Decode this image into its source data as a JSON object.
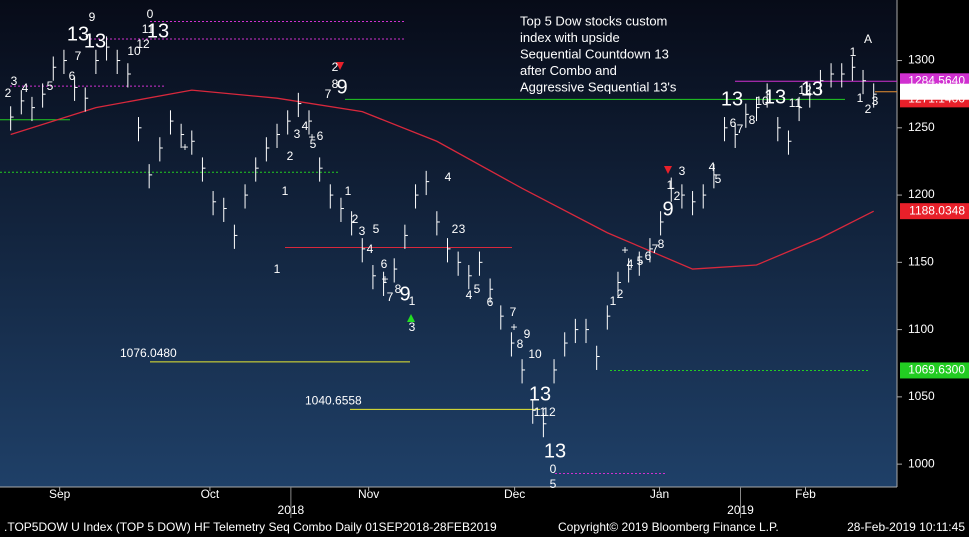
{
  "chart_data": {
    "type": "ohlc",
    "note": [
      "Top 5 Dow stocks custom",
      "index with upside",
      "Sequential Countdown 13",
      "after Combo and",
      "Aggressive Sequential 13's"
    ],
    "xlim": [
      -1,
      83
    ],
    "ylim": [
      983,
      1345
    ],
    "yticks": [
      1000,
      1050,
      1100,
      1150,
      1200,
      1250,
      1300
    ],
    "xticks": [
      {
        "value": 4.6,
        "label": "Sep"
      },
      {
        "value": 18.7,
        "label": "Oct"
      },
      {
        "value": 33.6,
        "label": "Nov"
      },
      {
        "value": 47.3,
        "label": "Dec"
      },
      {
        "value": 60.9,
        "label": "Jan"
      },
      {
        "value": 74.6,
        "label": "Feb"
      }
    ],
    "year_ticks": [
      {
        "value": 26.3,
        "label": "2018"
      },
      {
        "value": 68.5,
        "label": "2019"
      }
    ],
    "bar_color": "#ffffff",
    "high": [
      1266,
      1278,
      1273,
      1283,
      1303,
      1308,
      1288,
      1280,
      1308,
      1318,
      1308,
      1298,
      1258,
      1223,
      1243,
      1263,
      1253,
      1248,
      1228,
      1203,
      1198,
      1178,
      1208,
      1228,
      1243,
      1253,
      1263,
      1276,
      1263,
      1228,
      1208,
      1198,
      1188,
      1168,
      1148,
      1143,
      1153,
      1178,
      1208,
      1218,
      1188,
      1168,
      1158,
      1148,
      1158,
      1138,
      1118,
      1098,
      1078,
      1048,
      1038,
      1078,
      1098,
      1108,
      1108,
      1088,
      1118,
      1143,
      1153,
      1158,
      1168,
      1188,
      1213,
      1208,
      1203,
      1208,
      1223,
      1258,
      1253,
      1268,
      1273,
      1283,
      1258,
      1248,
      1273,
      1283,
      1293,
      1298,
      1298,
      1303,
      1293,
      1283
    ],
    "low": [
      1248,
      1260,
      1255,
      1265,
      1285,
      1290,
      1270,
      1262,
      1290,
      1300,
      1290,
      1280,
      1240,
      1205,
      1225,
      1245,
      1235,
      1230,
      1210,
      1185,
      1180,
      1160,
      1190,
      1210,
      1225,
      1235,
      1245,
      1258,
      1245,
      1210,
      1190,
      1180,
      1170,
      1150,
      1130,
      1125,
      1135,
      1160,
      1190,
      1200,
      1170,
      1150,
      1140,
      1130,
      1140,
      1120,
      1100,
      1080,
      1060,
      1030,
      1020,
      1060,
      1080,
      1090,
      1090,
      1070,
      1100,
      1125,
      1135,
      1140,
      1150,
      1170,
      1195,
      1190,
      1185,
      1190,
      1205,
      1240,
      1235,
      1250,
      1255,
      1265,
      1240,
      1230,
      1255,
      1265,
      1275,
      1280,
      1280,
      1285,
      1275,
      1265
    ],
    "close": [
      1258,
      1270,
      1265,
      1275,
      1295,
      1300,
      1280,
      1272,
      1300,
      1310,
      1300,
      1290,
      1250,
      1215,
      1235,
      1255,
      1245,
      1240,
      1220,
      1195,
      1190,
      1170,
      1200,
      1220,
      1235,
      1245,
      1255,
      1268,
      1255,
      1220,
      1200,
      1190,
      1180,
      1160,
      1140,
      1135,
      1145,
      1170,
      1200,
      1210,
      1180,
      1160,
      1150,
      1140,
      1150,
      1130,
      1110,
      1090,
      1070,
      1040,
      1030,
      1070,
      1090,
      1100,
      1100,
      1080,
      1110,
      1135,
      1145,
      1150,
      1160,
      1180,
      1205,
      1200,
      1195,
      1200,
      1215,
      1250,
      1245,
      1260,
      1265,
      1275,
      1250,
      1240,
      1265,
      1275,
      1285,
      1290,
      1290,
      1295,
      1285,
      1275
    ],
    "ma": {
      "color": "#d8283c",
      "x": [
        0,
        8,
        17,
        25,
        33,
        40,
        48,
        56,
        64,
        70,
        76,
        81
      ],
      "values": [
        1245,
        1265,
        1278,
        1272,
        1262,
        1240,
        1205,
        1172,
        1145,
        1148,
        1168,
        1188
      ]
    },
    "levels": [
      {
        "value": 1329,
        "color": "#d030d0",
        "dash": true
      },
      {
        "value": 1316,
        "color": "#d030d0",
        "dash": true
      },
      {
        "value": 1281,
        "color": "#d030d0",
        "dash": true
      },
      {
        "value": 1284.564,
        "color": "#d030d0",
        "dash": false
      },
      {
        "value": 1271.14,
        "color": "#22cc22",
        "dash": false
      },
      {
        "value": 1256,
        "color": "#22cc22",
        "dash": false
      },
      {
        "value": 1217,
        "color": "#22cc22",
        "dash": true
      },
      {
        "value": 1161,
        "color": "#d8283c",
        "dash": false
      },
      {
        "value": 1076.048,
        "label": "1076.0480",
        "color": "#e8e830",
        "dash": false
      },
      {
        "value": 1040.6558,
        "color": "#e8e830",
        "dash": false
      },
      {
        "value": 1069.63,
        "color": "#22cc22",
        "dash": true
      },
      {
        "value": 993,
        "color": "#d030d0",
        "dash": true
      },
      {
        "value": 1276.8081,
        "color": "#e89030",
        "dash": false
      }
    ],
    "price_tags": [
      {
        "value": 1284.564,
        "label": "1284.5640",
        "bg": "#d030d0",
        "fg": "#ffffff"
      },
      {
        "value": 1271.14,
        "label": "1271.1400",
        "bg": "#e8202a",
        "fg": "#ffffff"
      },
      {
        "value": 1188.0348,
        "bg": "#e8202a",
        "fg": "#ffffff"
      },
      {
        "value": 1069.63,
        "label": "1069.6300",
        "bg": "#22cc22",
        "fg": "#000000"
      },
      {
        "value": 1276.8081,
        "bg": "#ffffff",
        "fg": "#000000"
      }
    ],
    "annotations": [
      {
        "text": "13",
        "color": "#e020e0",
        "large": true
      },
      {
        "text": "13",
        "color": "#f4c890",
        "large": true
      },
      {
        "text": "9",
        "color": "#e8202a"
      },
      {
        "text": "0",
        "color": "#f0f020"
      },
      {
        "text": "11",
        "color": "#e8202a"
      },
      {
        "text": "13",
        "color": "#e8202a",
        "large": true
      },
      {
        "text": "10",
        "color": "#e8202a"
      },
      {
        "text": "12",
        "color": "#e8202a"
      },
      {
        "text": "7",
        "color": "#e8202a"
      },
      {
        "text": "6",
        "color": "#e8202a"
      },
      {
        "text": "5",
        "color": "#e8202a"
      },
      {
        "text": "3",
        "color": "#e8202a"
      },
      {
        "text": "4",
        "color": "#e8202a"
      },
      {
        "text": "2",
        "color": "#e8202a"
      },
      {
        "text": "2",
        "color": "#f0f020"
      },
      {
        "text": "8",
        "color": "#22dd22"
      },
      {
        "text": "9",
        "color": "#22dd22",
        "large": true
      },
      {
        "text": "7",
        "color": "#22dd22"
      },
      {
        "text": "4",
        "color": "#22dd22"
      },
      {
        "text": "3",
        "color": "#22dd22"
      },
      {
        "text": "2",
        "color": "#22dd22"
      },
      {
        "text": "1",
        "color": "#22dd22"
      },
      {
        "text": "5",
        "color": "#22dd22"
      },
      {
        "text": "6",
        "color": "#22dd22"
      },
      {
        "text": "1",
        "color": "#f0f020"
      },
      {
        "text": "4",
        "color": "#f0f020"
      },
      {
        "text": "1",
        "color": "#22dd22"
      },
      {
        "text": "2",
        "color": "#22dd22"
      },
      {
        "text": "3",
        "color": "#22dd22"
      },
      {
        "text": "5",
        "color": "#22dd22"
      },
      {
        "text": "4",
        "color": "#22dd22"
      },
      {
        "text": "6",
        "color": "#22dd22"
      },
      {
        "text": "7",
        "color": "#22dd22"
      },
      {
        "text": "8",
        "color": "#22dd22"
      },
      {
        "text": "9",
        "color": "#22dd22",
        "large": true
      },
      {
        "text": "1",
        "color": "#e8202a"
      },
      {
        "text": "3",
        "color": "#f0f020"
      },
      {
        "text": "2",
        "color": "#e8202a"
      },
      {
        "text": "3",
        "color": "#e8202a"
      },
      {
        "text": "4",
        "color": "#e8202a"
      },
      {
        "text": "5",
        "color": "#e8202a"
      },
      {
        "text": "6",
        "color": "#e8202a"
      },
      {
        "text": "7",
        "color": "#e8202a"
      },
      {
        "text": "8",
        "color": "#e8202a"
      },
      {
        "text": "9",
        "color": "#e8202a"
      },
      {
        "text": "10",
        "color": "#e8202a"
      },
      {
        "text": "13",
        "color": "#f4c890",
        "large": true
      },
      {
        "text": "11",
        "color": "#e8202a"
      },
      {
        "text": "12",
        "color": "#e8202a"
      },
      {
        "text": "13",
        "color": "#e8202a",
        "large": true
      },
      {
        "text": "0",
        "color": "#30c8f0"
      },
      {
        "text": "5",
        "color": "#f0f020"
      },
      {
        "text": "1",
        "color": "#22dd22"
      },
      {
        "text": "2",
        "color": "#22dd22"
      },
      {
        "text": "4",
        "color": "#22dd22"
      },
      {
        "text": "5",
        "color": "#22dd22"
      },
      {
        "text": "6",
        "color": "#22dd22"
      },
      {
        "text": "7",
        "color": "#22dd22"
      },
      {
        "text": "8",
        "color": "#22dd22"
      },
      {
        "text": "9",
        "color": "#22dd22",
        "large": true
      },
      {
        "text": "1",
        "color": "#e8202a"
      },
      {
        "text": "3",
        "color": "#e8202a"
      },
      {
        "text": "2",
        "color": "#e8202a"
      },
      {
        "text": "4",
        "color": "#e8202a"
      },
      {
        "text": "5",
        "color": "#e8202a"
      },
      {
        "text": "6",
        "color": "#e8202a"
      },
      {
        "text": "7",
        "color": "#e8202a"
      },
      {
        "text": "8",
        "color": "#e8202a"
      },
      {
        "text": "10",
        "color": "#e8202a"
      },
      {
        "text": "13",
        "color": "#e020e0",
        "large": true
      },
      {
        "text": "13",
        "color": "#f4c890",
        "large": true
      },
      {
        "text": "11",
        "color": "#e8202a"
      },
      {
        "text": "12",
        "color": "#e8202a"
      },
      {
        "text": "13",
        "color": "#e8202a",
        "large": true
      },
      {
        "text": "A",
        "color": "#f0f020"
      },
      {
        "text": "1",
        "color": "#30c8f0"
      },
      {
        "text": "1",
        "color": "#22dd22"
      },
      {
        "text": "2",
        "color": "#22dd22"
      },
      {
        "text": "3",
        "color": "#22dd22"
      },
      {
        "text": "+",
        "color": "#f0f020"
      },
      {
        "text": "+",
        "color": "#f0f020"
      },
      {
        "text": "+",
        "color": "#f0f020"
      },
      {
        "text": "+",
        "color": "#f0f020"
      },
      {
        "text": "+",
        "color": "#f0f020"
      }
    ],
    "footer": {
      "left": ".TOP5DOW U Index (TOP 5 DOW) HF Telemetry Seq Combo  Daily 01SEP2018-28FEB2019",
      "center": "Copyright© 2019 Bloomberg Finance L.P.",
      "right": "28-Feb-2019 10:11:45"
    }
  }
}
